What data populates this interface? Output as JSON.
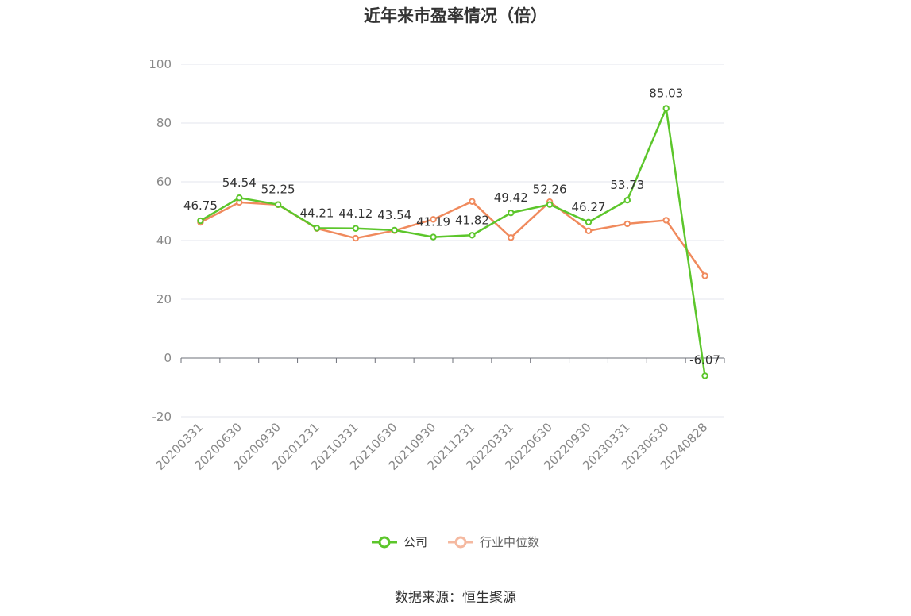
{
  "title": "近年来市盈率情况（倍）",
  "source": "数据来源：恒生聚源",
  "chart_data": {
    "type": "line",
    "categories": [
      "20200331",
      "20200630",
      "20200930",
      "20201231",
      "20210331",
      "20210630",
      "20210930",
      "20211231",
      "20220331",
      "20220630",
      "20220930",
      "20230331",
      "20230630",
      "20240828"
    ],
    "ylim": [
      -20,
      100
    ],
    "yticks": [
      -20,
      0,
      20,
      40,
      60,
      80,
      100
    ],
    "grid": true,
    "legend_position": "bottom-center",
    "series": [
      {
        "name": "公司",
        "color": "#5cc62b",
        "show_labels": true,
        "values": [
          46.75,
          54.54,
          52.25,
          44.21,
          44.12,
          43.54,
          41.19,
          41.82,
          49.42,
          52.26,
          46.27,
          53.73,
          85.03,
          -6.07
        ],
        "labels": [
          "46.75",
          "54.54",
          "52.25",
          "44.21",
          "44.12",
          "43.54",
          "41.19",
          "41.82",
          "49.42",
          "52.26",
          "46.27",
          "53.73",
          "85.03",
          "-6.07"
        ]
      },
      {
        "name": "行业中位数",
        "color": "#f08a5d",
        "show_labels": false,
        "values": [
          46.2,
          53.0,
          52.2,
          44.1,
          40.8,
          43.4,
          47.2,
          53.3,
          41.0,
          53.2,
          43.3,
          45.7,
          46.9,
          28.0
        ]
      }
    ]
  }
}
